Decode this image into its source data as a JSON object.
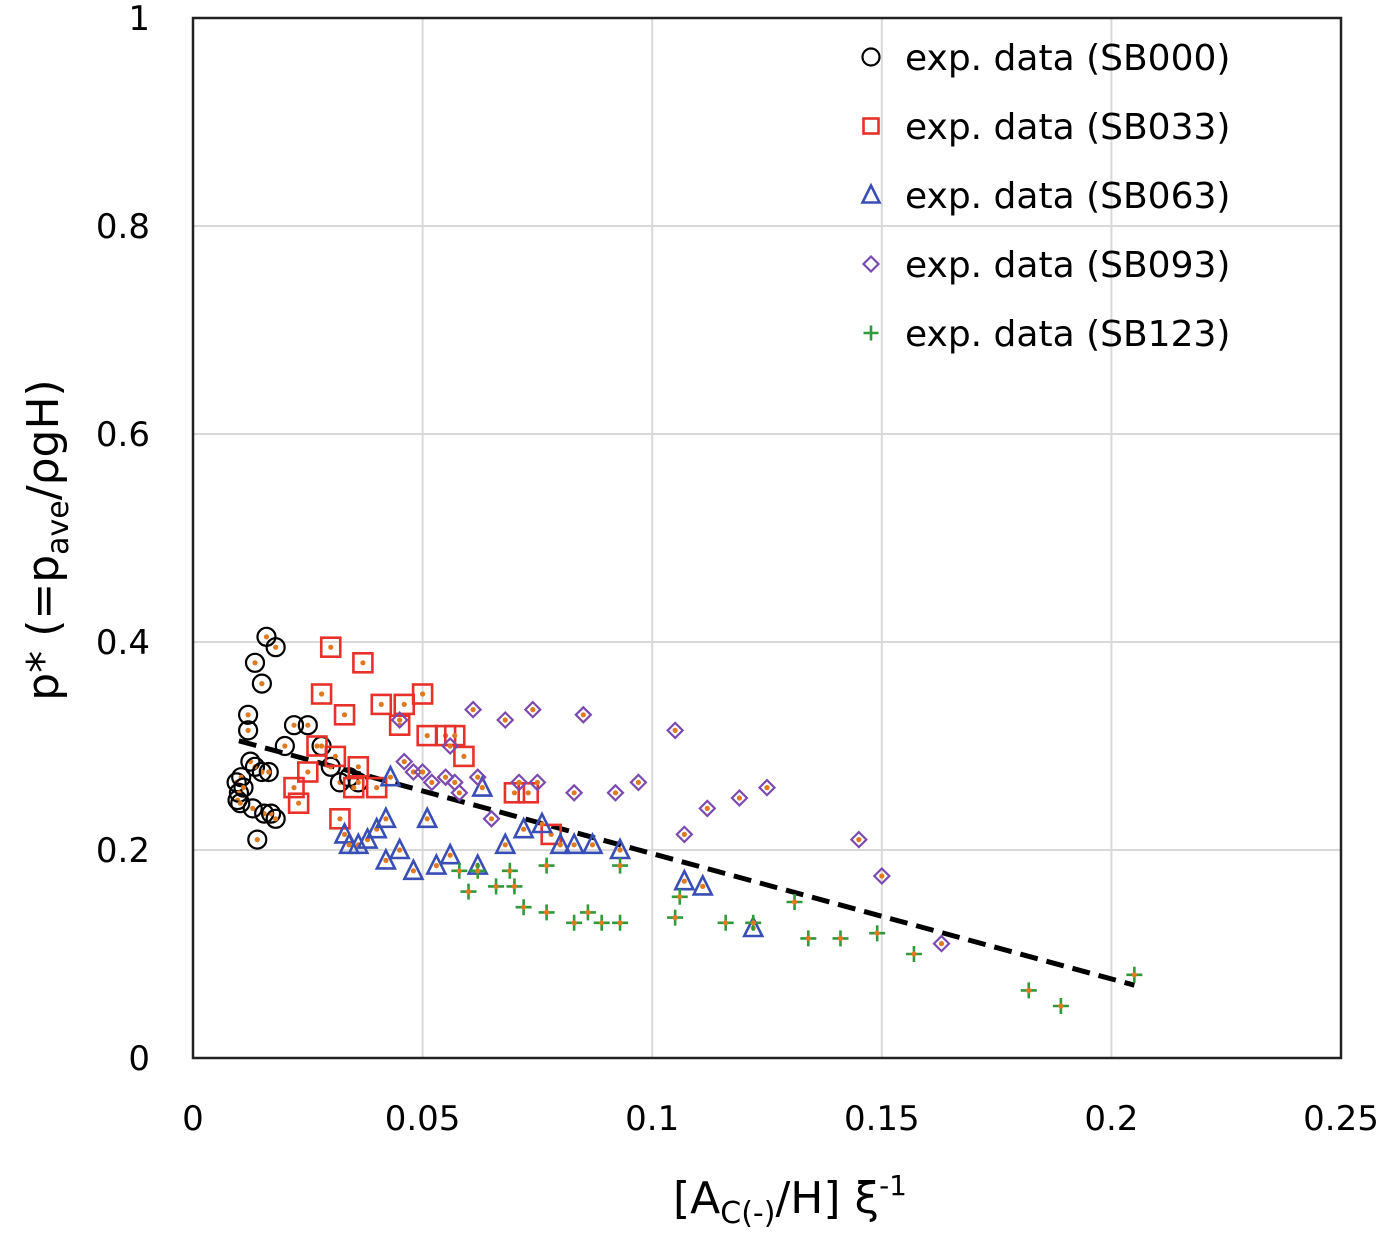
{
  "chart_data": {
    "type": "scatter",
    "title": "",
    "xlabel": {
      "base": "[A",
      "sub": "C(-)",
      "mid": "/H] ξ",
      "sup": "-1"
    },
    "ylabel": {
      "base": "p* (=p",
      "sub": "ave",
      "rest": "/ρgH)"
    },
    "xlim": [
      0,
      0.25
    ],
    "ylim": [
      0,
      1
    ],
    "x_ticks": [
      "0",
      "0.05",
      "0.1",
      "0.15",
      "0.2",
      "0.25"
    ],
    "y_ticks": [
      "0",
      "0.2",
      "0.4",
      "0.6",
      "0.8",
      "1"
    ],
    "grid": true,
    "legend_position": "top-right",
    "series": [
      {
        "name": "exp. data (SB000)",
        "marker": "circle",
        "color": "#000000",
        "dot": "#E07A20",
        "points": [
          [
            0.0095,
            0.265
          ],
          [
            0.0097,
            0.248
          ],
          [
            0.01,
            0.255
          ],
          [
            0.0105,
            0.27
          ],
          [
            0.0103,
            0.245
          ],
          [
            0.011,
            0.26
          ],
          [
            0.012,
            0.33
          ],
          [
            0.012,
            0.315
          ],
          [
            0.0125,
            0.285
          ],
          [
            0.013,
            0.24
          ],
          [
            0.0135,
            0.28
          ],
          [
            0.0135,
            0.38
          ],
          [
            0.014,
            0.21
          ],
          [
            0.015,
            0.36
          ],
          [
            0.015,
            0.275
          ],
          [
            0.0155,
            0.235
          ],
          [
            0.016,
            0.405
          ],
          [
            0.0165,
            0.275
          ],
          [
            0.017,
            0.235
          ],
          [
            0.018,
            0.395
          ],
          [
            0.018,
            0.23
          ],
          [
            0.02,
            0.3
          ],
          [
            0.022,
            0.32
          ],
          [
            0.025,
            0.32
          ],
          [
            0.028,
            0.3
          ],
          [
            0.03,
            0.28
          ],
          [
            0.032,
            0.265
          ],
          [
            0.034,
            0.27
          ],
          [
            0.036,
            0.265
          ]
        ]
      },
      {
        "name": "exp. data (SB033)",
        "marker": "square",
        "color": "#E8312A",
        "dot": "#E07A20",
        "points": [
          [
            0.022,
            0.26
          ],
          [
            0.023,
            0.245
          ],
          [
            0.025,
            0.275
          ],
          [
            0.027,
            0.3
          ],
          [
            0.028,
            0.35
          ],
          [
            0.03,
            0.395
          ],
          [
            0.031,
            0.29
          ],
          [
            0.032,
            0.23
          ],
          [
            0.033,
            0.33
          ],
          [
            0.035,
            0.26
          ],
          [
            0.036,
            0.28
          ],
          [
            0.037,
            0.38
          ],
          [
            0.04,
            0.26
          ],
          [
            0.041,
            0.34
          ],
          [
            0.045,
            0.32
          ],
          [
            0.046,
            0.34
          ],
          [
            0.05,
            0.35
          ],
          [
            0.051,
            0.31
          ],
          [
            0.055,
            0.31
          ],
          [
            0.057,
            0.31
          ],
          [
            0.059,
            0.29
          ],
          [
            0.07,
            0.255
          ],
          [
            0.073,
            0.255
          ],
          [
            0.078,
            0.215
          ]
        ]
      },
      {
        "name": "exp. data (SB063)",
        "marker": "triangle",
        "color": "#3A4FB5",
        "dot": "#E07A20",
        "points": [
          [
            0.033,
            0.215
          ],
          [
            0.034,
            0.205
          ],
          [
            0.036,
            0.205
          ],
          [
            0.038,
            0.21
          ],
          [
            0.04,
            0.22
          ],
          [
            0.042,
            0.19
          ],
          [
            0.042,
            0.23
          ],
          [
            0.043,
            0.27
          ],
          [
            0.045,
            0.2
          ],
          [
            0.048,
            0.18
          ],
          [
            0.051,
            0.23
          ],
          [
            0.053,
            0.185
          ],
          [
            0.056,
            0.195
          ],
          [
            0.062,
            0.185
          ],
          [
            0.063,
            0.26
          ],
          [
            0.068,
            0.205
          ],
          [
            0.072,
            0.22
          ],
          [
            0.076,
            0.225
          ],
          [
            0.08,
            0.205
          ],
          [
            0.083,
            0.205
          ],
          [
            0.087,
            0.205
          ],
          [
            0.093,
            0.2
          ],
          [
            0.107,
            0.17
          ],
          [
            0.111,
            0.165
          ],
          [
            0.122,
            0.125
          ]
        ]
      },
      {
        "name": "exp. data (SB093)",
        "marker": "diamond",
        "color": "#7B4AB0",
        "dot": "#E07A20",
        "points": [
          [
            0.045,
            0.325
          ],
          [
            0.046,
            0.285
          ],
          [
            0.048,
            0.275
          ],
          [
            0.05,
            0.275
          ],
          [
            0.052,
            0.265
          ],
          [
            0.055,
            0.27
          ],
          [
            0.056,
            0.3
          ],
          [
            0.057,
            0.265
          ],
          [
            0.058,
            0.255
          ],
          [
            0.061,
            0.335
          ],
          [
            0.062,
            0.27
          ],
          [
            0.065,
            0.23
          ],
          [
            0.068,
            0.325
          ],
          [
            0.071,
            0.265
          ],
          [
            0.074,
            0.335
          ],
          [
            0.075,
            0.265
          ],
          [
            0.083,
            0.255
          ],
          [
            0.085,
            0.33
          ],
          [
            0.092,
            0.255
          ],
          [
            0.097,
            0.265
          ],
          [
            0.105,
            0.315
          ],
          [
            0.107,
            0.215
          ],
          [
            0.112,
            0.24
          ],
          [
            0.119,
            0.25
          ],
          [
            0.125,
            0.26
          ],
          [
            0.145,
            0.21
          ],
          [
            0.15,
            0.175
          ],
          [
            0.163,
            0.11
          ]
        ]
      },
      {
        "name": "exp. data (SB123)",
        "marker": "plus",
        "color": "#2E9A3A",
        "dot": "#E07A20",
        "points": [
          [
            0.058,
            0.18
          ],
          [
            0.06,
            0.16
          ],
          [
            0.062,
            0.18
          ],
          [
            0.066,
            0.165
          ],
          [
            0.069,
            0.18
          ],
          [
            0.07,
            0.165
          ],
          [
            0.072,
            0.145
          ],
          [
            0.077,
            0.185
          ],
          [
            0.077,
            0.14
          ],
          [
            0.083,
            0.13
          ],
          [
            0.086,
            0.14
          ],
          [
            0.089,
            0.13
          ],
          [
            0.093,
            0.13
          ],
          [
            0.093,
            0.185
          ],
          [
            0.105,
            0.135
          ],
          [
            0.106,
            0.155
          ],
          [
            0.116,
            0.13
          ],
          [
            0.122,
            0.13
          ],
          [
            0.131,
            0.15
          ],
          [
            0.134,
            0.115
          ],
          [
            0.141,
            0.115
          ],
          [
            0.149,
            0.12
          ],
          [
            0.157,
            0.1
          ],
          [
            0.182,
            0.065
          ],
          [
            0.189,
            0.05
          ],
          [
            0.205,
            0.08
          ]
        ]
      }
    ],
    "trend_line": {
      "style": "dashed",
      "color": "#000000",
      "x": [
        0.01,
        0.205
      ],
      "y": [
        0.305,
        0.07
      ]
    }
  }
}
